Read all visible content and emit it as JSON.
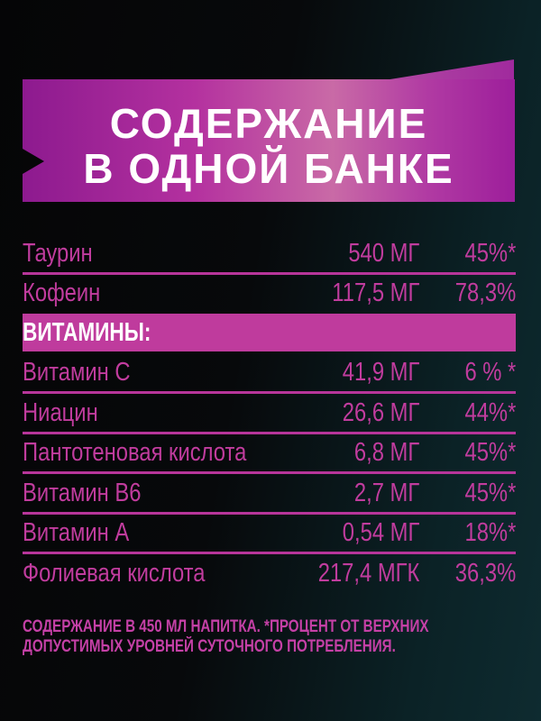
{
  "title": {
    "line1": "СОДЕРЖАНИЕ",
    "line2": "В ОДНОЙ БАНКЕ"
  },
  "rows_top": [
    {
      "name": "Таурин",
      "amount": "540 МГ",
      "percent": "45%*"
    },
    {
      "name": "Кофеин",
      "amount": "117,5 МГ",
      "percent": "78,3%"
    }
  ],
  "vitamins_header": "ВИТАМИНЫ:",
  "rows_vitamins": [
    {
      "name": "Витамин С",
      "amount": "41,9 МГ",
      "percent": "6 % *"
    },
    {
      "name": "Ниацин",
      "amount": "26,6 МГ",
      "percent": "44%*"
    },
    {
      "name": "Пантотеновая кислота",
      "amount": "6,8 МГ",
      "percent": "45%*"
    },
    {
      "name": "Витамин В6",
      "amount": "2,7 МГ",
      "percent": "45%*"
    },
    {
      "name": "Витамин А",
      "amount": "0,54 МГ",
      "percent": "18%*"
    },
    {
      "name": "Фолиевая кислота",
      "amount": "217,4 МГК",
      "percent": "36,3%"
    }
  ],
  "footnote": {
    "line1": "СОДЕРЖАНИЕ В 450 МЛ НАПИТКА.  *ПРОЦЕНТ ОТ ВЕРХНИХ",
    "line2": "ДОПУСТИМЫХ УРОВНЕЙ СУТОЧНОГО ПОТРЕБЛЕНИЯ."
  },
  "colors": {
    "accent": "#c13c9e",
    "banner": "#b4319f",
    "background": "#07090b"
  }
}
